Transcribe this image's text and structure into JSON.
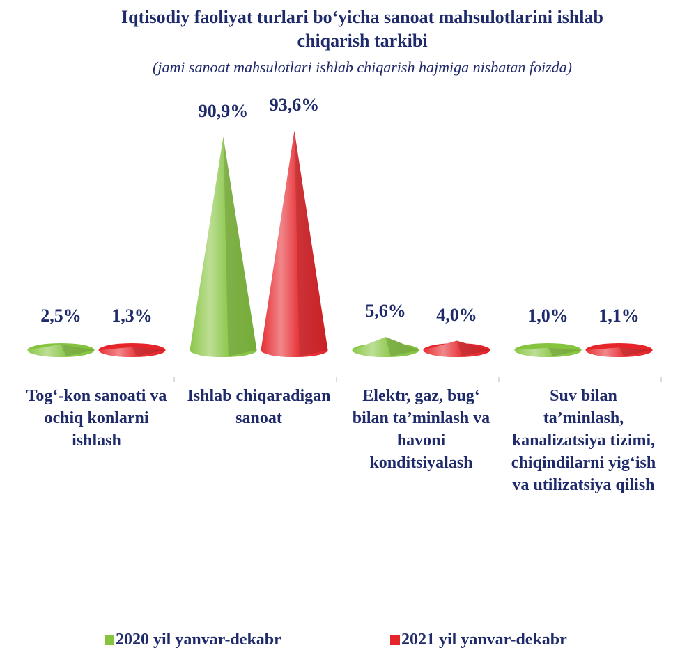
{
  "chart_data": {
    "type": "cone-bar",
    "title": "Iqtisodiy faoliyat turlari bo‘yicha sanoat mahsulotlarini ishlab chiqarish tarkibi",
    "subtitle": "(jami sanoat mahsulotlari ishlab chiqarish hajmiga nisbatan foizda)",
    "categories": [
      "Tog‘-kon sanoati va ochiq konlarni ishlash",
      "Ishlab chiqaradigan sanoat",
      "Elektr, gaz, bug‘ bilan ta’minlash va havoni konditsiyalash",
      "Suv bilan ta’minlash, kanalizatsiya tizimi, chiqindilarni yig‘ish va utilizatsiya qilish"
    ],
    "series": [
      {
        "name": "2020 yil yanvar-dekabr",
        "color": "#86c440",
        "values": [
          2.5,
          90.9,
          5.6,
          1.0
        ],
        "value_labels": [
          "2,5%",
          "90,9%",
          "5,6%",
          "1,0%"
        ]
      },
      {
        "name": "2021 yil yanvar-dekabr",
        "color": "#e5252a",
        "values": [
          1.3,
          93.6,
          4.0,
          1.1
        ],
        "value_labels": [
          "1,3%",
          "93,6%",
          "4,0%",
          "1,1%"
        ]
      }
    ],
    "legend": "bottom"
  }
}
